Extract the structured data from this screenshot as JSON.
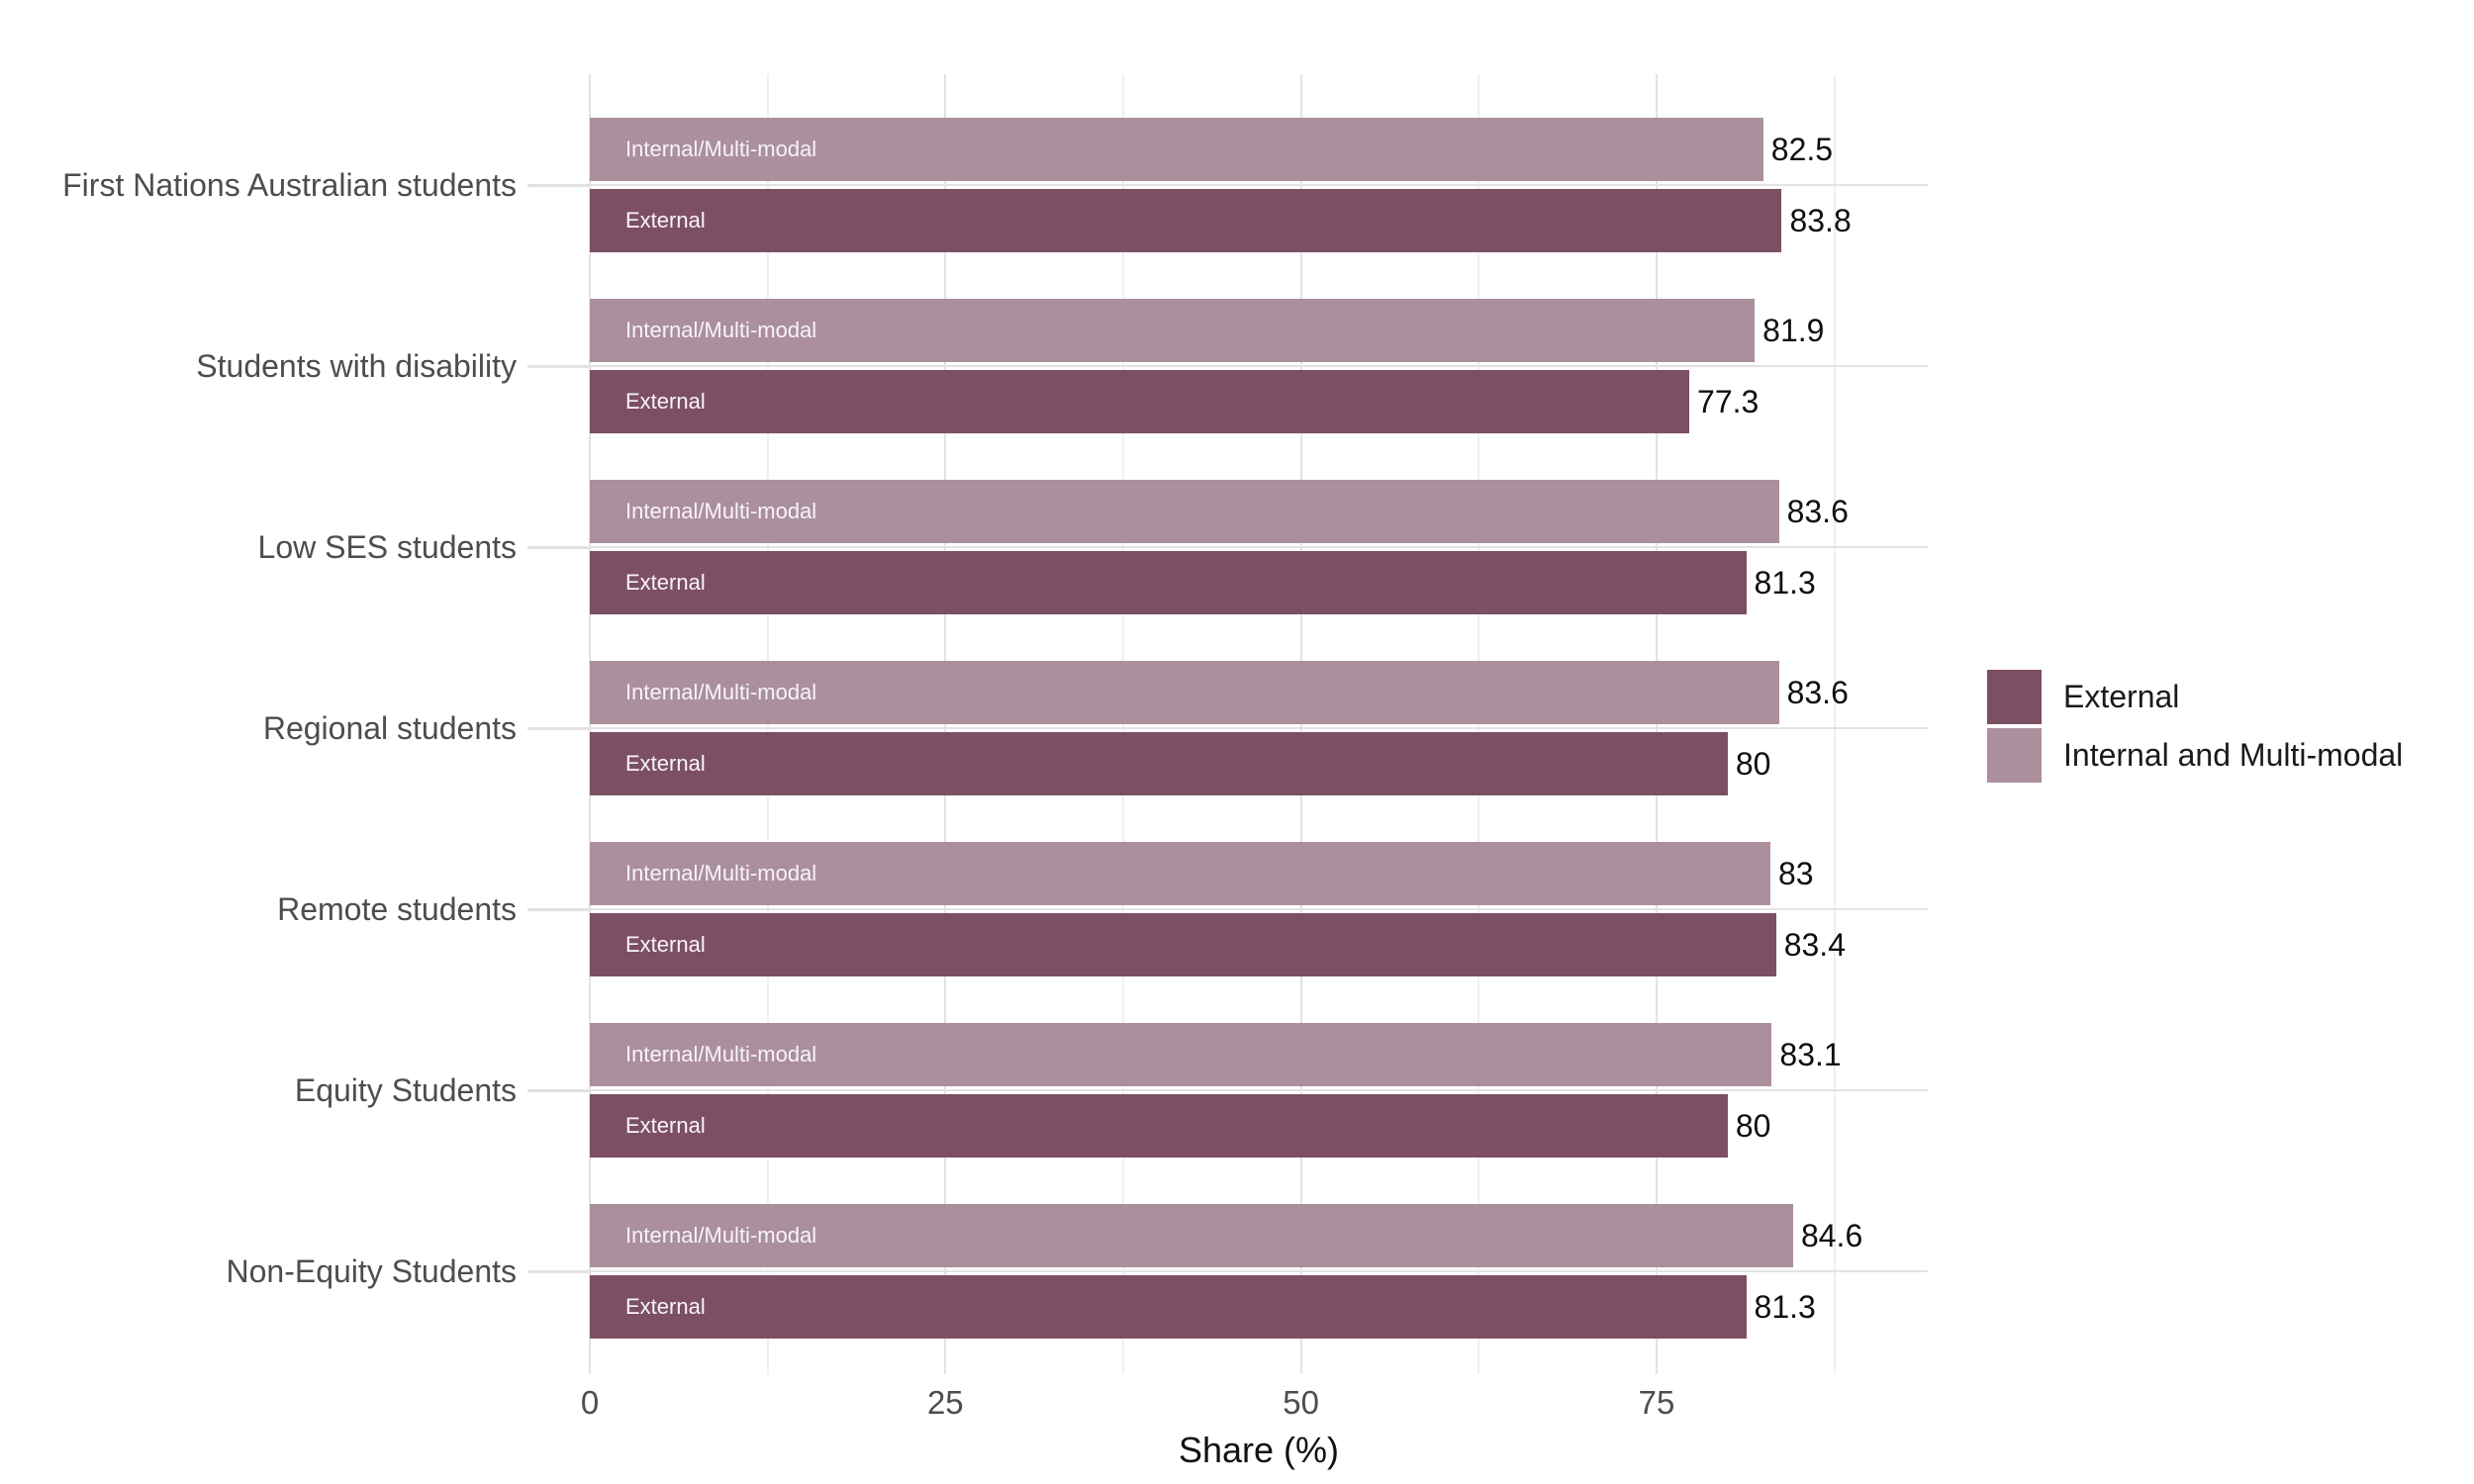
{
  "chart_data": {
    "type": "bar",
    "orientation": "horizontal",
    "xlabel": "Share (%)",
    "xlim": [
      0,
      94
    ],
    "x_ticks": [
      0,
      25,
      50,
      75
    ],
    "x_minor_ticks": [
      12.5,
      37.5,
      62.5,
      87.5
    ],
    "grid": "on",
    "legend_position": "right",
    "categories": [
      "First Nations Australian students",
      "Students with disability",
      "Low SES students",
      "Regional students",
      "Remote students",
      "Equity Students",
      "Non-Equity Students"
    ],
    "series": [
      {
        "name": "Internal and Multi-modal",
        "bar_label": "Internal/Multi-modal",
        "color": "#ab8f9d",
        "values": [
          82.5,
          81.9,
          83.6,
          83.6,
          83,
          83.1,
          84.6
        ]
      },
      {
        "name": "External",
        "bar_label": "External",
        "color": "#7d4f64",
        "values": [
          83.8,
          77.3,
          81.3,
          80,
          83.4,
          80,
          81.3
        ]
      }
    ]
  },
  "legend": {
    "items": [
      {
        "label": "External",
        "color": "#7d4f64"
      },
      {
        "label": "Internal and Multi-modal",
        "color": "#ab8f9d"
      }
    ]
  },
  "colors": {
    "external": "#7d4f64",
    "internal_multimodal": "#ab8f9d",
    "grid_major": "#e3e3e3",
    "grid_minor": "#efefef",
    "axis_text": "#4d4d4d",
    "value_text": "#0f0f0f",
    "background": "#ffffff"
  }
}
